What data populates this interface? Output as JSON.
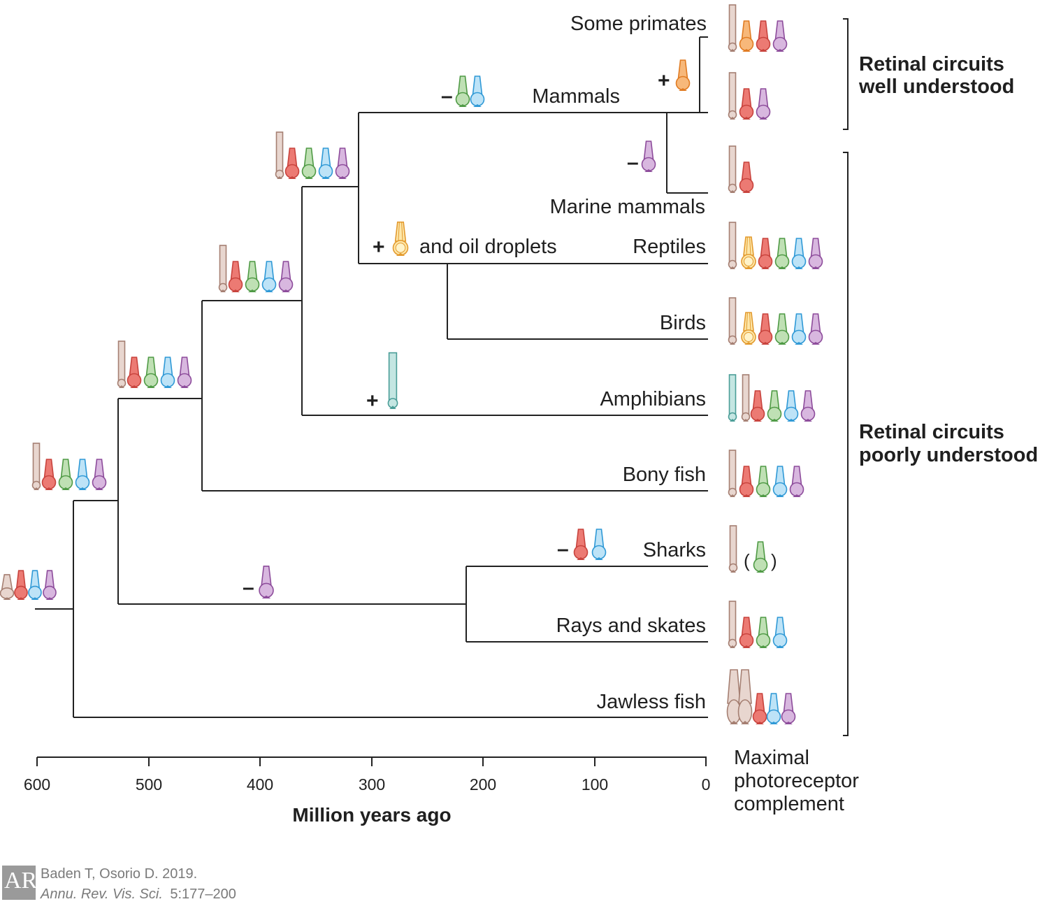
{
  "colors": {
    "rod": "#e8d6cf",
    "rod_stroke": "#a57f72",
    "red": "#ec7a73",
    "red_stroke": "#c8433d",
    "green": "#bfe0b4",
    "green_stroke": "#4f9a45",
    "blue": "#bde3f7",
    "blue_stroke": "#2f99d6",
    "violet": "#d8b7df",
    "violet_stroke": "#8d4c9b",
    "orange": "#f7b87a",
    "orange_stroke": "#e07b22",
    "oil": "#fde7a9",
    "oil_stroke": "#e39a2e",
    "teal": "#c4e6e2",
    "teal_stroke": "#4a9d97"
  },
  "taxa": [
    {
      "id": "some-primates",
      "label": "Some primates",
      "complement": [
        "rod",
        "orange",
        "red",
        "violet"
      ]
    },
    {
      "id": "mammals",
      "label": "Mammals",
      "complement": [
        "rod",
        "red",
        "violet"
      ]
    },
    {
      "id": "marine-mammals",
      "label": "Marine mammals",
      "complement": [
        "rod",
        "red"
      ]
    },
    {
      "id": "reptiles",
      "label": "Reptiles",
      "complement": [
        "rod",
        "oil",
        "red",
        "green",
        "blue",
        "violet"
      ]
    },
    {
      "id": "birds",
      "label": "Birds",
      "complement": [
        "rod",
        "oil",
        "red",
        "green",
        "blue",
        "violet"
      ]
    },
    {
      "id": "amphibians",
      "label": "Amphibians",
      "complement": [
        "teal",
        "rod",
        "red",
        "green",
        "blue",
        "violet"
      ]
    },
    {
      "id": "bony-fish",
      "label": "Bony fish",
      "complement": [
        "rod",
        "red",
        "green",
        "blue",
        "violet"
      ]
    },
    {
      "id": "sharks",
      "label": "Sharks",
      "complement": [
        "rod",
        "(green)"
      ]
    },
    {
      "id": "rays-and-skates",
      "label": "Rays and skates",
      "complement": [
        "rod",
        "red",
        "green",
        "blue"
      ]
    },
    {
      "id": "jawless-fish",
      "label": "Jawless fish",
      "complement": [
        "rod-large",
        "rod-large",
        "red",
        "blue",
        "violet"
      ]
    }
  ],
  "events": {
    "mammals_loss": {
      "sign": "–",
      "types": [
        "green",
        "blue"
      ]
    },
    "primates_gain": {
      "sign": "+",
      "types": [
        "orange"
      ]
    },
    "marine_loss": {
      "sign": "–",
      "types": [
        "violet"
      ]
    },
    "oil_gain": {
      "sign": "+",
      "types": [
        "oil"
      ],
      "text": "and oil droplets"
    },
    "amphibian_gain": {
      "sign": "+",
      "types": [
        "teal"
      ]
    },
    "shark_loss": {
      "sign": "–",
      "types": [
        "red",
        "blue"
      ]
    },
    "cartilaginous_loss": {
      "sign": "–",
      "types": [
        "violet"
      ]
    }
  },
  "ancestral_nodes": [
    {
      "id": "root",
      "types": [
        "rod-small",
        "red",
        "blue",
        "violet"
      ]
    },
    {
      "id": "vertebrate",
      "types": [
        "rod",
        "red",
        "green",
        "blue",
        "violet"
      ]
    },
    {
      "id": "gnathostome",
      "types": [
        "rod",
        "red",
        "green",
        "blue",
        "violet"
      ]
    },
    {
      "id": "osteichthyes",
      "types": [
        "rod",
        "red",
        "green",
        "blue",
        "violet"
      ]
    },
    {
      "id": "tetrapod",
      "types": [
        "rod",
        "red",
        "green",
        "blue",
        "violet"
      ]
    }
  ],
  "axis": {
    "title": "Million years ago",
    "ticks": [
      "600",
      "500",
      "400",
      "300",
      "200",
      "100",
      "0"
    ]
  },
  "complement_label": [
    "Maximal",
    "photoreceptor",
    "complement"
  ],
  "groups": {
    "well": [
      "Retinal circuits",
      "well understood"
    ],
    "poorly": [
      "Retinal circuits",
      "poorly understood"
    ]
  },
  "sharks_paren": {
    "open": "(",
    "close": ")"
  },
  "credit": {
    "authors": "Baden T, Osorio D. 2019.",
    "journal": "Annu. Rev. Vis. Sci.",
    "pages": "5:177–200",
    "logo": "AR"
  }
}
